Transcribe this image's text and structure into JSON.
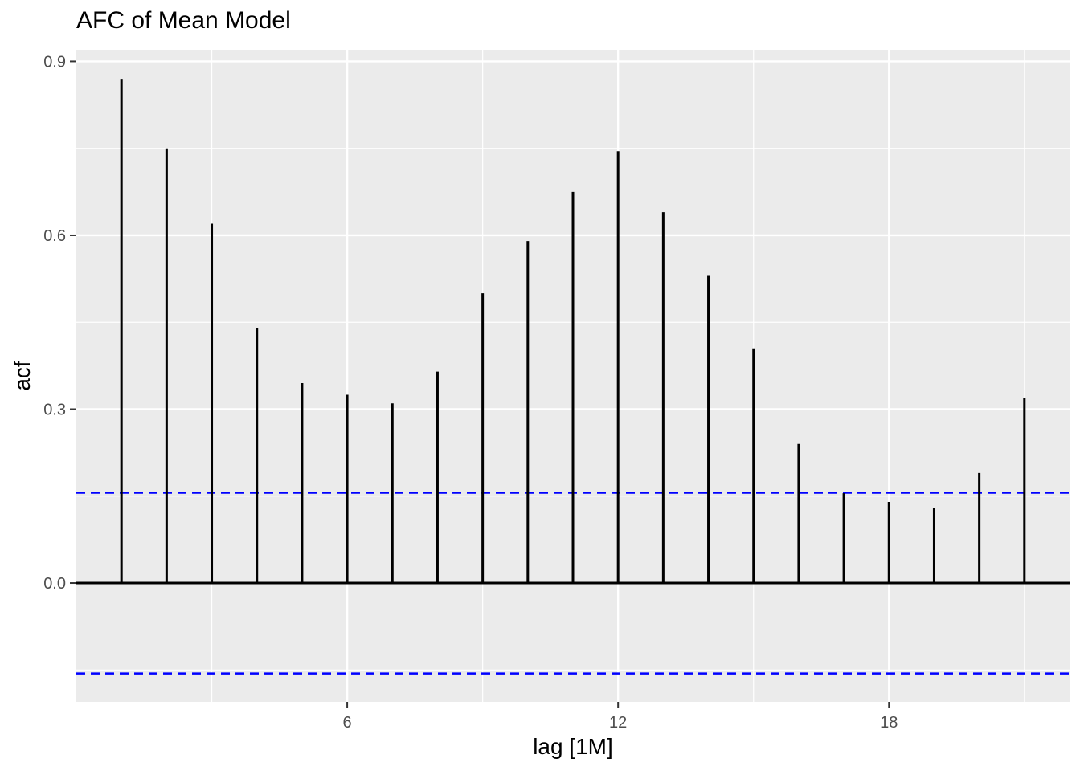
{
  "chart_data": {
    "type": "bar",
    "subtype": "acf-stem-plot",
    "title": "AFC of Mean Model",
    "xlabel": "lag [1M]",
    "ylabel": "acf",
    "x": [
      1,
      2,
      3,
      4,
      5,
      6,
      7,
      8,
      9,
      10,
      11,
      12,
      13,
      14,
      15,
      16,
      17,
      18,
      19,
      20,
      21
    ],
    "values": [
      0.87,
      0.75,
      0.62,
      0.44,
      0.345,
      0.325,
      0.31,
      0.365,
      0.5,
      0.59,
      0.675,
      0.745,
      0.64,
      0.53,
      0.405,
      0.24,
      0.155,
      0.14,
      0.13,
      0.19,
      0.32
    ],
    "confidence_upper": 0.156,
    "confidence_lower": -0.156,
    "x_ticks": [
      6,
      12,
      18
    ],
    "x_tick_labels": [
      "6",
      "12",
      "18"
    ],
    "x_minor_breaks": [
      3,
      9,
      15,
      21
    ],
    "y_ticks": [
      0.0,
      0.3,
      0.6,
      0.9
    ],
    "y_tick_labels": [
      "0.0",
      "0.3",
      "0.6",
      "0.9"
    ],
    "y_minor_breaks": [
      -0.15,
      0.15,
      0.45,
      0.75
    ],
    "xlim": [
      0,
      22
    ],
    "ylim": [
      -0.205,
      0.92
    ],
    "grid": true,
    "legend": "none",
    "colors": {
      "panel_background": "#EBEBEB",
      "gridline": "#FFFFFF",
      "bar": "#000000",
      "zero_line": "#000000",
      "confidence_line": "#0000FF",
      "tick_mark": "#333333",
      "tick_label": "#4D4D4D",
      "title_text": "#000000"
    }
  }
}
